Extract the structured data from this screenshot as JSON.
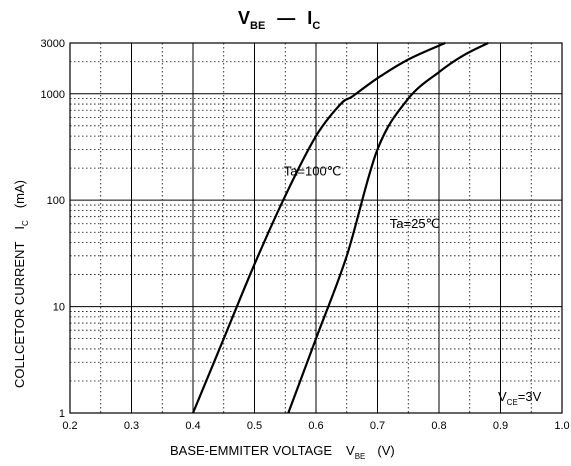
{
  "chart_data": {
    "type": "line",
    "title": {
      "main": "V",
      "main_sub": "BE",
      "dash": "—",
      "right": "I",
      "right_sub": "C"
    },
    "xlabel": {
      "main": "BASE-EMMITER VOLTAGE",
      "symbol": "V",
      "symbol_sub": "BE",
      "unit": "(V)"
    },
    "ylabel": {
      "main": "COLLCETOR CURRENT",
      "symbol": "I",
      "symbol_sub": "C",
      "unit": "(mA)"
    },
    "x_scale": "linear",
    "y_scale": "log",
    "xlim": [
      0.2,
      1.0
    ],
    "ylim": [
      1,
      3000
    ],
    "x_ticks": [
      "0.2",
      "0.3",
      "0.4",
      "0.5",
      "0.6",
      "0.7",
      "0.8",
      "0.9",
      "1.0"
    ],
    "x_tick_values": [
      0.2,
      0.3,
      0.4,
      0.5,
      0.6,
      0.7,
      0.8,
      0.9,
      1.0
    ],
    "y_ticks": [
      "1",
      "10",
      "100",
      "1000",
      "3000"
    ],
    "y_tick_values": [
      1,
      10,
      100,
      1000,
      3000
    ],
    "grid": true,
    "series": [
      {
        "name": "Ta=100℃",
        "x": [
          0.4,
          0.45,
          0.5,
          0.55,
          0.6,
          0.64,
          0.66,
          0.7,
          0.75,
          0.81
        ],
        "y": [
          1,
          5,
          25,
          110,
          400,
          800,
          950,
          1400,
          2100,
          3000
        ]
      },
      {
        "name": "Ta=25℃",
        "x": [
          0.555,
          0.6,
          0.65,
          0.7,
          0.75,
          0.8,
          0.84,
          0.88
        ],
        "y": [
          1,
          5,
          30,
          300,
          900,
          1600,
          2300,
          3000
        ]
      }
    ],
    "annotations": [
      {
        "text": "Ta=100℃",
        "x": 0.58,
        "y": 170
      },
      {
        "text": "Ta=25℃",
        "x": 0.72,
        "y": 55
      },
      {
        "text": "V",
        "sub": "CE",
        "after": "=3V",
        "x": 0.92,
        "y": 1.6
      }
    ]
  }
}
